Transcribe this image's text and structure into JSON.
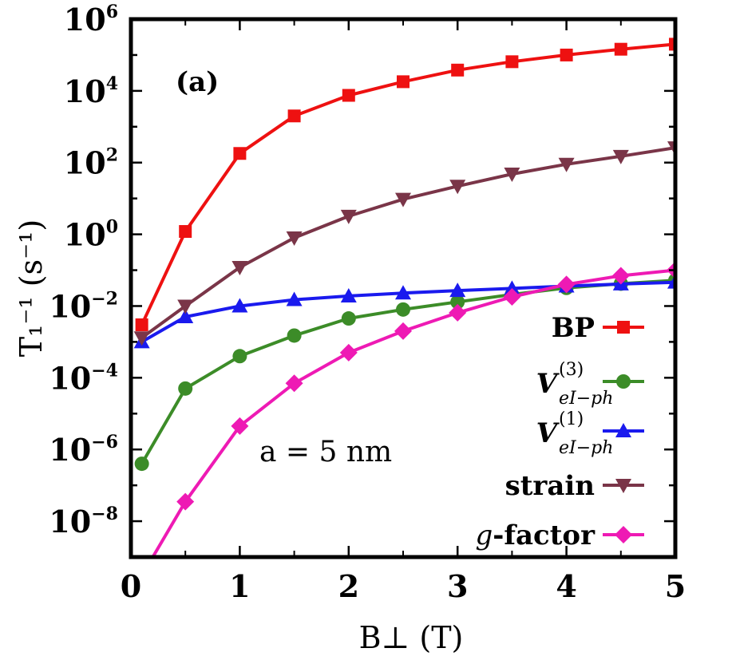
{
  "chart_data": {
    "type": "line",
    "panel_label": "(a)",
    "annotation": "a = 5 nm",
    "xlabel": "B⊥ (T)",
    "ylabel": "T₁⁻¹ (s⁻¹)",
    "xlim": [
      0,
      5
    ],
    "ylim": [
      1e-09,
      1000000.0
    ],
    "y_scale": "log",
    "x_ticks": [
      0,
      1,
      2,
      3,
      4,
      5
    ],
    "x_tick_labels": [
      "0",
      "1",
      "2",
      "3",
      "4",
      "5"
    ],
    "y_tick_exponents": [
      -8,
      -6,
      -4,
      -2,
      0,
      2,
      4,
      6
    ],
    "y_tick_base": "10",
    "grid": false,
    "legend_placement": "lower-right",
    "x": [
      0.1,
      0.5,
      1.0,
      1.5,
      2.0,
      2.5,
      3.0,
      3.5,
      4.0,
      4.5,
      5.0
    ],
    "series": [
      {
        "name": "BP",
        "color": "#ee1111",
        "marker": "square",
        "values": [
          0.003,
          1.2,
          180,
          2000,
          7500,
          18000,
          38000,
          65000,
          100000,
          145000,
          200000
        ]
      },
      {
        "name": "V_{eI-ph}^{(3)}",
        "name_main": "V",
        "name_sup": "(3)",
        "name_sub": "eI−ph",
        "color": "#3c8c28",
        "marker": "circle",
        "values": [
          4e-07,
          5e-05,
          0.0004,
          0.0015,
          0.0045,
          0.008,
          0.013,
          0.021,
          0.032,
          0.042,
          0.052
        ]
      },
      {
        "name": "V_{eI-ph}^{(1)}",
        "name_main": "V",
        "name_sup": "(1)",
        "name_sub": "eI−ph",
        "color": "#1a1aee",
        "marker": "triangle-up",
        "values": [
          0.001,
          0.005,
          0.01,
          0.015,
          0.019,
          0.023,
          0.027,
          0.031,
          0.036,
          0.041,
          0.046
        ]
      },
      {
        "name": "strain",
        "color": "#7a3548",
        "marker": "triangle-down",
        "values": [
          0.0013,
          0.01,
          0.12,
          0.8,
          3.2,
          9.5,
          22,
          48,
          90,
          150,
          260
        ]
      },
      {
        "name": "g-factor",
        "name_main": "g",
        "name_suffix": "-factor",
        "color": "#ee1ab4",
        "marker": "diamond",
        "values": [
          3e-10,
          3.5e-08,
          4.5e-06,
          7e-05,
          0.0005,
          0.002,
          0.0065,
          0.018,
          0.04,
          0.07,
          0.1
        ]
      }
    ]
  }
}
